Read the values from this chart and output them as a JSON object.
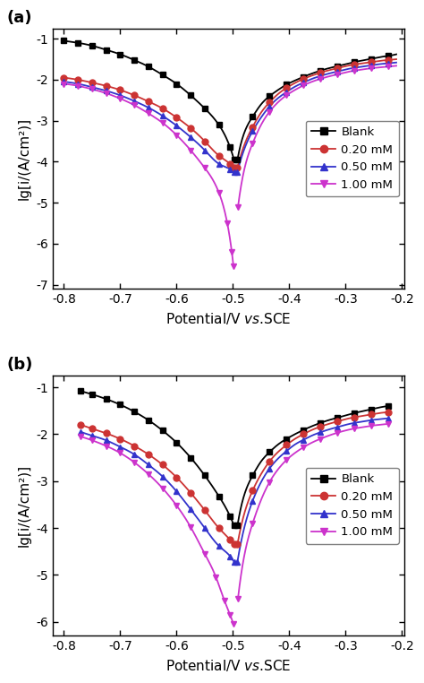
{
  "panel_a_label": "(a)",
  "panel_b_label": "(b)",
  "ylabel": "lg[i/(A/cm²)]",
  "xlim": [
    -0.82,
    -0.195
  ],
  "ylim_a": [
    -7.1,
    -0.75
  ],
  "ylim_b": [
    -6.3,
    -0.75
  ],
  "xticks": [
    -0.8,
    -0.7,
    -0.6,
    -0.5,
    -0.4,
    -0.3,
    -0.2
  ],
  "yticks_a": [
    -7,
    -6,
    -5,
    -4,
    -3,
    -2,
    -1
  ],
  "yticks_b": [
    -6,
    -5,
    -4,
    -3,
    -2,
    -1
  ],
  "legend_labels": [
    "Blank",
    "0.20 mM",
    "0.50 mM",
    "1.00 mM"
  ],
  "colors": [
    "#000000",
    "#cc3333",
    "#3333cc",
    "#cc33cc"
  ],
  "markers": [
    "s",
    "o",
    "^",
    "v"
  ],
  "markersize": 5,
  "linewidth": 1.3,
  "background": "#ffffff",
  "panel_a": {
    "blank": {
      "cat_x": [
        -0.8,
        -0.775,
        -0.75,
        -0.725,
        -0.7,
        -0.675,
        -0.65,
        -0.625,
        -0.6,
        -0.575,
        -0.55,
        -0.525,
        -0.505,
        -0.498
      ],
      "cat_y": [
        -1.05,
        -1.1,
        -1.17,
        -1.27,
        -1.38,
        -1.52,
        -1.68,
        -1.88,
        -2.1,
        -2.38,
        -2.7,
        -3.1,
        -3.65,
        -3.95
      ],
      "ano_x": [
        -0.492,
        -0.48,
        -0.465,
        -0.45,
        -0.435,
        -0.42,
        -0.405,
        -0.39,
        -0.375,
        -0.36,
        -0.345,
        -0.33,
        -0.315,
        -0.3,
        -0.285,
        -0.27,
        -0.255,
        -0.24,
        -0.225,
        -0.21
      ],
      "ano_y": [
        -3.95,
        -3.3,
        -2.9,
        -2.6,
        -2.4,
        -2.25,
        -2.12,
        -2.02,
        -1.93,
        -1.85,
        -1.78,
        -1.72,
        -1.67,
        -1.62,
        -1.57,
        -1.53,
        -1.49,
        -1.45,
        -1.42,
        -1.38
      ]
    },
    "conc1": {
      "cat_x": [
        -0.8,
        -0.775,
        -0.75,
        -0.725,
        -0.7,
        -0.675,
        -0.65,
        -0.625,
        -0.6,
        -0.575,
        -0.55,
        -0.525,
        -0.505,
        -0.498
      ],
      "cat_y": [
        -1.95,
        -2.0,
        -2.07,
        -2.15,
        -2.25,
        -2.38,
        -2.53,
        -2.7,
        -2.92,
        -3.18,
        -3.5,
        -3.85,
        -4.05,
        -4.15
      ],
      "ano_x": [
        -0.492,
        -0.48,
        -0.465,
        -0.45,
        -0.435,
        -0.42,
        -0.405,
        -0.39,
        -0.375,
        -0.36,
        -0.345,
        -0.33,
        -0.315,
        -0.3,
        -0.285,
        -0.27,
        -0.255,
        -0.24,
        -0.225,
        -0.21
      ],
      "ano_y": [
        -4.15,
        -3.6,
        -3.15,
        -2.8,
        -2.55,
        -2.35,
        -2.2,
        -2.08,
        -1.98,
        -1.9,
        -1.83,
        -1.77,
        -1.72,
        -1.67,
        -1.63,
        -1.6,
        -1.57,
        -1.54,
        -1.52,
        -1.5
      ]
    },
    "conc2": {
      "cat_x": [
        -0.8,
        -0.775,
        -0.75,
        -0.725,
        -0.7,
        -0.675,
        -0.65,
        -0.625,
        -0.6,
        -0.575,
        -0.55,
        -0.525,
        -0.505,
        -0.498
      ],
      "cat_y": [
        -2.05,
        -2.1,
        -2.18,
        -2.27,
        -2.38,
        -2.52,
        -2.68,
        -2.88,
        -3.12,
        -3.4,
        -3.72,
        -4.05,
        -4.18,
        -4.25
      ],
      "ano_x": [
        -0.492,
        -0.48,
        -0.465,
        -0.45,
        -0.435,
        -0.42,
        -0.405,
        -0.39,
        -0.375,
        -0.36,
        -0.345,
        -0.33,
        -0.315,
        -0.3,
        -0.285,
        -0.27,
        -0.255,
        -0.24,
        -0.225,
        -0.21
      ],
      "ano_y": [
        -4.25,
        -3.7,
        -3.25,
        -2.92,
        -2.65,
        -2.45,
        -2.3,
        -2.17,
        -2.07,
        -1.98,
        -1.91,
        -1.85,
        -1.8,
        -1.75,
        -1.71,
        -1.68,
        -1.65,
        -1.62,
        -1.6,
        -1.58
      ]
    },
    "conc3": {
      "cat_x": [
        -0.8,
        -0.775,
        -0.75,
        -0.725,
        -0.7,
        -0.675,
        -0.65,
        -0.625,
        -0.6,
        -0.575,
        -0.55,
        -0.525,
        -0.51,
        -0.502,
        -0.499
      ],
      "cat_y": [
        -2.1,
        -2.15,
        -2.23,
        -2.33,
        -2.46,
        -2.62,
        -2.82,
        -3.05,
        -3.35,
        -3.72,
        -4.15,
        -4.75,
        -5.5,
        -6.2,
        -6.55
      ],
      "ano_x": [
        -0.491,
        -0.48,
        -0.465,
        -0.45,
        -0.435,
        -0.42,
        -0.405,
        -0.39,
        -0.375,
        -0.36,
        -0.345,
        -0.33,
        -0.315,
        -0.3,
        -0.285,
        -0.27,
        -0.255,
        -0.24,
        -0.225,
        -0.21
      ],
      "ano_y": [
        -5.1,
        -4.2,
        -3.55,
        -3.1,
        -2.78,
        -2.55,
        -2.38,
        -2.25,
        -2.14,
        -2.05,
        -1.98,
        -1.92,
        -1.87,
        -1.82,
        -1.78,
        -1.75,
        -1.72,
        -1.7,
        -1.68,
        -1.66
      ]
    }
  },
  "panel_b": {
    "blank": {
      "cat_x": [
        -0.77,
        -0.75,
        -0.725,
        -0.7,
        -0.675,
        -0.65,
        -0.625,
        -0.6,
        -0.575,
        -0.55,
        -0.525,
        -0.505,
        -0.498
      ],
      "cat_y": [
        -1.08,
        -1.15,
        -1.25,
        -1.37,
        -1.52,
        -1.7,
        -1.92,
        -2.18,
        -2.5,
        -2.88,
        -3.32,
        -3.75,
        -3.95
      ],
      "ano_x": [
        -0.492,
        -0.48,
        -0.465,
        -0.45,
        -0.435,
        -0.42,
        -0.405,
        -0.39,
        -0.375,
        -0.36,
        -0.345,
        -0.33,
        -0.315,
        -0.3,
        -0.285,
        -0.27,
        -0.255,
        -0.24,
        -0.225
      ],
      "ano_y": [
        -3.95,
        -3.3,
        -2.88,
        -2.58,
        -2.38,
        -2.22,
        -2.1,
        -2.0,
        -1.91,
        -1.83,
        -1.76,
        -1.7,
        -1.65,
        -1.6,
        -1.55,
        -1.51,
        -1.47,
        -1.43,
        -1.4
      ]
    },
    "conc1": {
      "cat_x": [
        -0.77,
        -0.75,
        -0.725,
        -0.7,
        -0.675,
        -0.65,
        -0.625,
        -0.6,
        -0.575,
        -0.55,
        -0.525,
        -0.505,
        -0.498
      ],
      "cat_y": [
        -1.8,
        -1.88,
        -1.98,
        -2.1,
        -2.25,
        -2.43,
        -2.65,
        -2.92,
        -3.25,
        -3.62,
        -4.0,
        -4.25,
        -4.35
      ],
      "ano_x": [
        -0.492,
        -0.48,
        -0.465,
        -0.45,
        -0.435,
        -0.42,
        -0.405,
        -0.39,
        -0.375,
        -0.36,
        -0.345,
        -0.33,
        -0.315,
        -0.3,
        -0.285,
        -0.27,
        -0.255,
        -0.24,
        -0.225
      ],
      "ano_y": [
        -4.35,
        -3.7,
        -3.2,
        -2.85,
        -2.58,
        -2.38,
        -2.23,
        -2.1,
        -2.0,
        -1.91,
        -1.84,
        -1.78,
        -1.73,
        -1.68,
        -1.64,
        -1.61,
        -1.58,
        -1.55,
        -1.53
      ]
    },
    "conc2": {
      "cat_x": [
        -0.77,
        -0.75,
        -0.725,
        -0.7,
        -0.675,
        -0.65,
        -0.625,
        -0.6,
        -0.575,
        -0.55,
        -0.525,
        -0.505,
        -0.498
      ],
      "cat_y": [
        -1.95,
        -2.03,
        -2.13,
        -2.27,
        -2.43,
        -2.65,
        -2.9,
        -3.22,
        -3.6,
        -4.0,
        -4.38,
        -4.6,
        -4.72
      ],
      "ano_x": [
        -0.492,
        -0.48,
        -0.465,
        -0.45,
        -0.435,
        -0.42,
        -0.405,
        -0.39,
        -0.375,
        -0.36,
        -0.345,
        -0.33,
        -0.315,
        -0.3,
        -0.285,
        -0.27,
        -0.255,
        -0.24,
        -0.225
      ],
      "ano_y": [
        -4.72,
        -4.0,
        -3.42,
        -3.02,
        -2.73,
        -2.52,
        -2.36,
        -2.22,
        -2.12,
        -2.03,
        -1.96,
        -1.9,
        -1.85,
        -1.8,
        -1.76,
        -1.73,
        -1.7,
        -1.68,
        -1.66
      ]
    },
    "conc3": {
      "cat_x": [
        -0.77,
        -0.75,
        -0.725,
        -0.7,
        -0.675,
        -0.65,
        -0.625,
        -0.6,
        -0.575,
        -0.55,
        -0.53,
        -0.515,
        -0.505,
        -0.499
      ],
      "cat_y": [
        -2.05,
        -2.13,
        -2.25,
        -2.4,
        -2.6,
        -2.85,
        -3.15,
        -3.52,
        -3.98,
        -4.55,
        -5.05,
        -5.55,
        -5.85,
        -6.05
      ],
      "ano_x": [
        -0.491,
        -0.48,
        -0.465,
        -0.45,
        -0.435,
        -0.42,
        -0.405,
        -0.39,
        -0.375,
        -0.36,
        -0.345,
        -0.33,
        -0.315,
        -0.3,
        -0.285,
        -0.27,
        -0.255,
        -0.24,
        -0.225
      ],
      "ano_y": [
        -5.5,
        -4.6,
        -3.9,
        -3.4,
        -3.02,
        -2.75,
        -2.55,
        -2.4,
        -2.28,
        -2.18,
        -2.1,
        -2.03,
        -1.97,
        -1.92,
        -1.88,
        -1.85,
        -1.82,
        -1.8,
        -1.78
      ]
    }
  }
}
